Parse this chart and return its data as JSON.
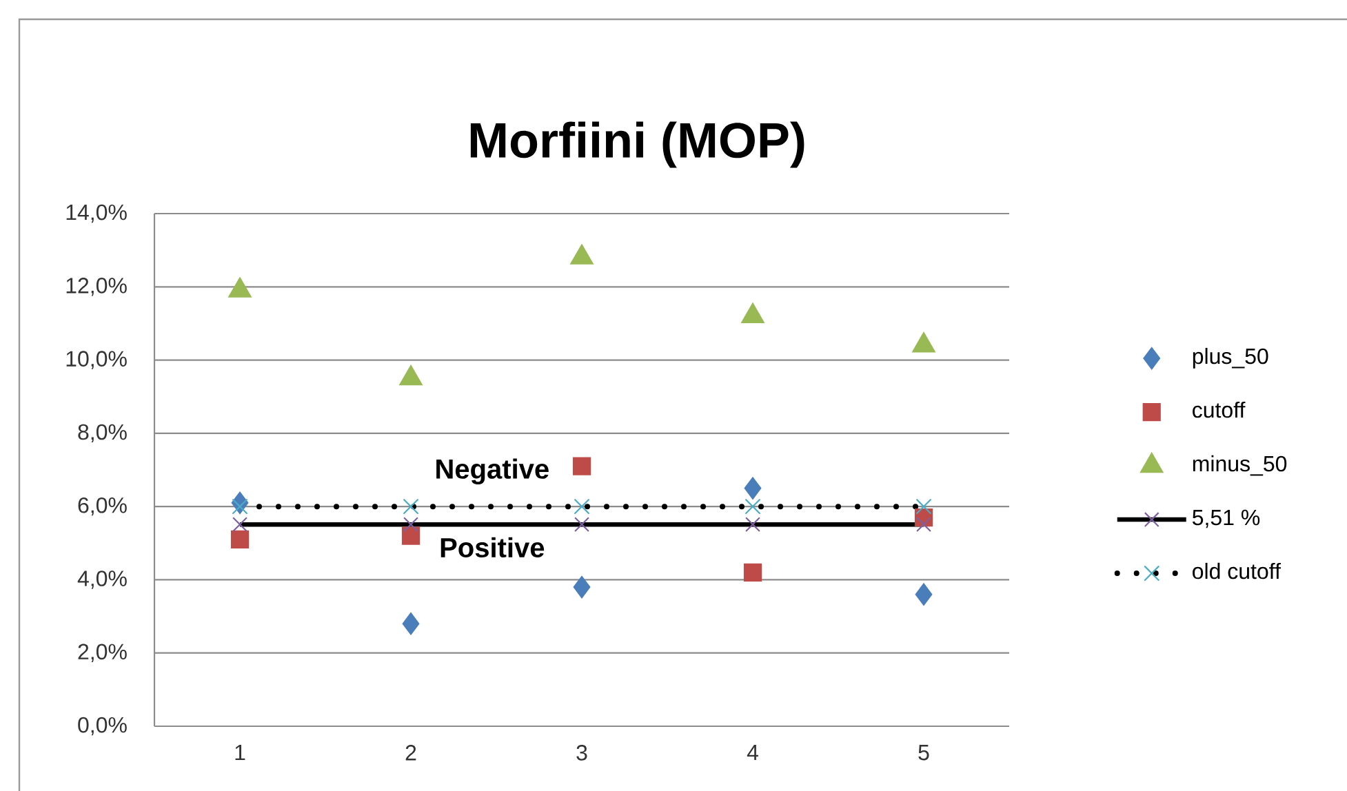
{
  "chart_data": {
    "type": "line",
    "title": "Morfiini (MOP)",
    "categories": [
      "1",
      "2",
      "3",
      "4",
      "5"
    ],
    "series": [
      {
        "name": "plus_50",
        "type": "scatter",
        "color": "#4a7ebb",
        "marker": "diamond",
        "values": [
          6.1,
          2.8,
          3.8,
          6.5,
          3.6
        ]
      },
      {
        "name": "cutoff",
        "type": "scatter",
        "color": "#be4b48",
        "marker": "square",
        "values": [
          5.1,
          5.2,
          7.1,
          4.2,
          5.7
        ]
      },
      {
        "name": "minus_50",
        "type": "scatter",
        "color": "#98b954",
        "marker": "triangle",
        "values": [
          11.9,
          9.5,
          12.8,
          11.2,
          10.4
        ]
      },
      {
        "name": "5,51 %",
        "type": "line",
        "color": "#000000",
        "colors": [
          "#7d60a0",
          "#7d60a0",
          "#7d60a0",
          "#7d60a0",
          "#7d60a0"
        ],
        "marker": "cross",
        "line_style": "solid",
        "values": [
          5.51,
          5.51,
          5.51,
          5.51,
          5.51
        ]
      },
      {
        "name": "old cutoff",
        "type": "line",
        "color": "#000000",
        "colors": [
          "#4bacc6",
          "#4bacc6",
          "#4bacc6",
          "#4bacc6",
          "#4bacc6"
        ],
        "marker": "cross",
        "line_style": "dotted",
        "values": [
          6.0,
          6.0,
          6.0,
          6.0,
          6.0
        ]
      }
    ],
    "ylim": [
      0,
      14
    ],
    "yticks": [
      {
        "value": 0,
        "label": "0,0%"
      },
      {
        "value": 2,
        "label": "2,0%"
      },
      {
        "value": 4,
        "label": "4,0%"
      },
      {
        "value": 6,
        "label": "6,0%"
      },
      {
        "value": 8,
        "label": "8,0%"
      },
      {
        "value": 10,
        "label": "10,0%"
      },
      {
        "value": 12,
        "label": "12,0%"
      },
      {
        "value": 14,
        "label": "14,0%"
      }
    ],
    "grid": "y",
    "legend": "right",
    "annotations": [
      "Negative",
      "Positive"
    ]
  }
}
